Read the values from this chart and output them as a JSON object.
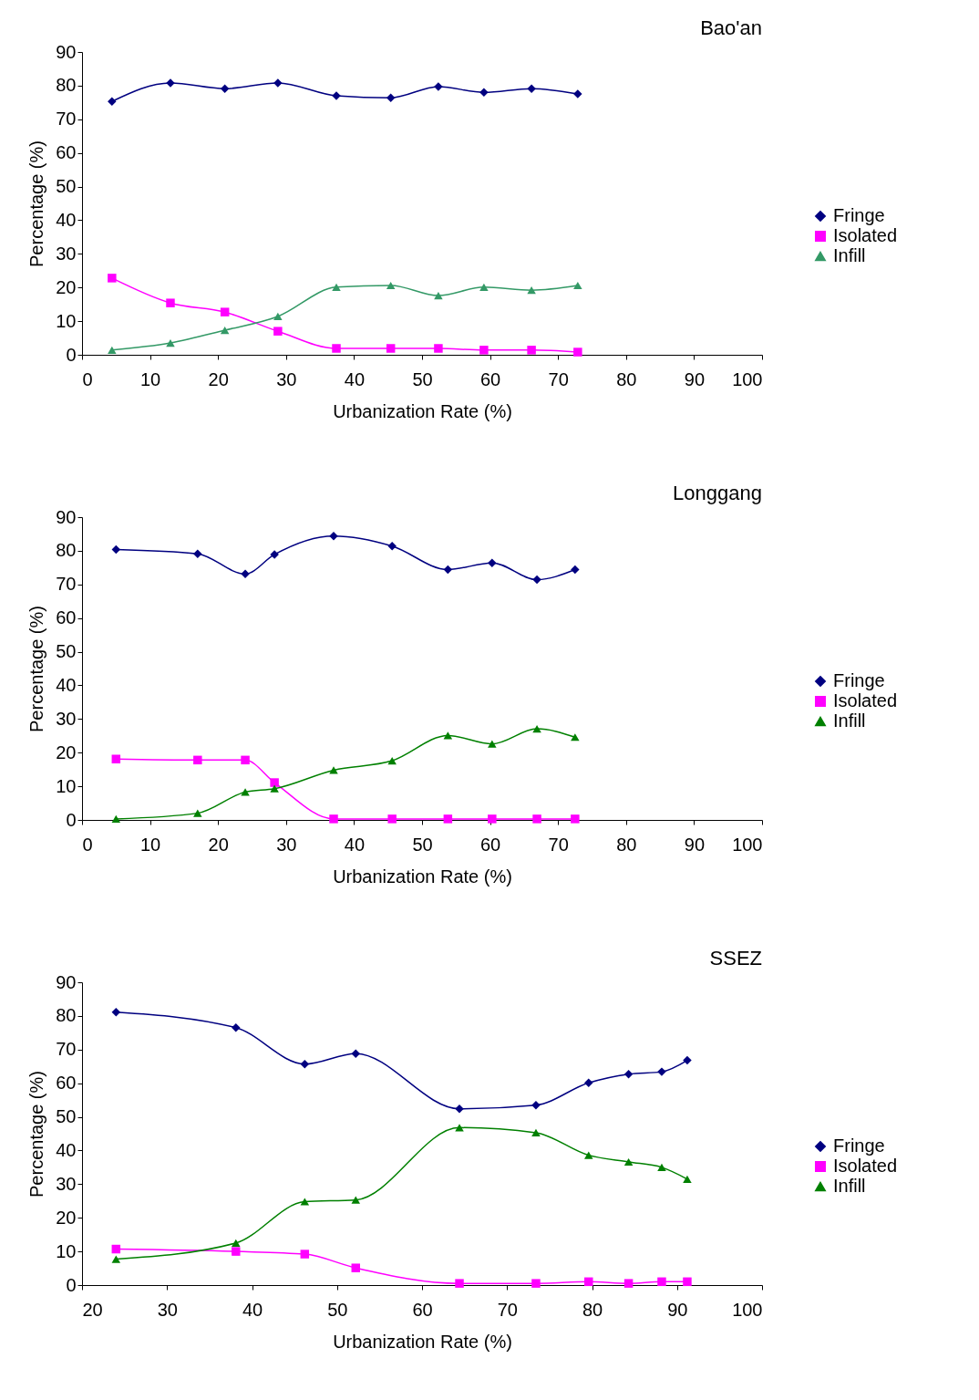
{
  "chart_data": [
    {
      "type": "line",
      "title": "Bao'an",
      "xlabel": "Urbanization Rate (%)",
      "ylabel": "Percentage (%)",
      "xlim": [
        0,
        100
      ],
      "xticks": [
        0,
        10,
        20,
        30,
        40,
        50,
        60,
        70,
        80,
        90,
        100
      ],
      "ylim": [
        0,
        90
      ],
      "yticks": [
        0,
        10,
        20,
        30,
        40,
        50,
        60,
        70,
        80,
        90
      ],
      "grid": false,
      "legend": "right",
      "x": [
        4.4,
        13.0,
        21.0,
        28.8,
        37.4,
        45.4,
        52.4,
        59.1,
        66.1,
        72.9
      ],
      "series": [
        {
          "name": "Fringe",
          "color": "#000080",
          "marker": "diamond",
          "values": [
            75.3,
            80.8,
            79.1,
            80.8,
            77.0,
            76.4,
            79.7,
            78.0,
            79.1,
            77.5
          ]
        },
        {
          "name": "Isolated",
          "color": "#ff00ff",
          "marker": "square",
          "values": [
            22.8,
            15.4,
            12.7,
            7.0,
            1.9,
            1.9,
            1.9,
            1.4,
            1.4,
            0.8
          ]
        },
        {
          "name": "Infill",
          "color": "#339966",
          "marker": "triangle",
          "values": [
            1.4,
            3.5,
            7.3,
            11.4,
            20.1,
            20.6,
            17.6,
            20.1,
            19.2,
            20.6
          ]
        }
      ]
    },
    {
      "type": "line",
      "title": "Longgang",
      "xlabel": "Urbanization Rate (%)",
      "ylabel": "Percentage (%)",
      "xlim": [
        0,
        100
      ],
      "xticks": [
        0,
        10,
        20,
        30,
        40,
        50,
        60,
        70,
        80,
        90,
        100
      ],
      "ylim": [
        0,
        90
      ],
      "yticks": [
        0,
        10,
        20,
        30,
        40,
        50,
        60,
        70,
        80,
        90
      ],
      "grid": false,
      "legend": "right",
      "x": [
        5.0,
        17.0,
        24.0,
        28.3,
        37.0,
        45.6,
        53.8,
        60.3,
        66.9,
        72.5
      ],
      "series": [
        {
          "name": "Fringe",
          "color": "#000080",
          "marker": "diamond",
          "values": [
            80.4,
            79.1,
            73.1,
            78.9,
            84.4,
            81.4,
            74.4,
            76.4,
            71.4,
            74.4
          ]
        },
        {
          "name": "Isolated",
          "color": "#ff00ff",
          "marker": "square",
          "values": [
            18.1,
            17.8,
            17.8,
            11.1,
            0.3,
            0.3,
            0.3,
            0.3,
            0.3,
            0.3
          ]
        },
        {
          "name": "Infill",
          "color": "#008000",
          "marker": "triangle",
          "values": [
            0.3,
            2.0,
            8.3,
            9.3,
            14.8,
            17.6,
            25.1,
            22.6,
            27.1,
            24.6
          ]
        }
      ]
    },
    {
      "type": "line",
      "title": "SSEZ",
      "xlabel": "Urbanization Rate (%)",
      "ylabel": "Percentage (%)",
      "xlim": [
        20,
        100
      ],
      "xticks": [
        20,
        30,
        40,
        50,
        60,
        70,
        80,
        90,
        100
      ],
      "ylim": [
        0,
        90
      ],
      "yticks": [
        0,
        10,
        20,
        30,
        40,
        50,
        60,
        70,
        80,
        90
      ],
      "grid": false,
      "legend": "right",
      "x": [
        24.0,
        38.1,
        46.2,
        52.2,
        64.4,
        73.4,
        79.6,
        84.3,
        88.2,
        91.2
      ],
      "series": [
        {
          "name": "Fringe",
          "color": "#000080",
          "marker": "diamond",
          "values": [
            81.1,
            76.5,
            65.7,
            68.8,
            52.4,
            53.5,
            60.1,
            62.7,
            63.4,
            66.8
          ]
        },
        {
          "name": "Isolated",
          "color": "#ff00ff",
          "marker": "square",
          "values": [
            10.7,
            10.0,
            9.2,
            5.1,
            0.5,
            0.5,
            1.0,
            0.5,
            1.0,
            1.0
          ]
        },
        {
          "name": "Infill",
          "color": "#008000",
          "marker": "triangle",
          "values": [
            7.7,
            12.5,
            24.8,
            25.3,
            46.8,
            45.3,
            38.6,
            36.6,
            35.0,
            31.5
          ]
        }
      ]
    }
  ]
}
